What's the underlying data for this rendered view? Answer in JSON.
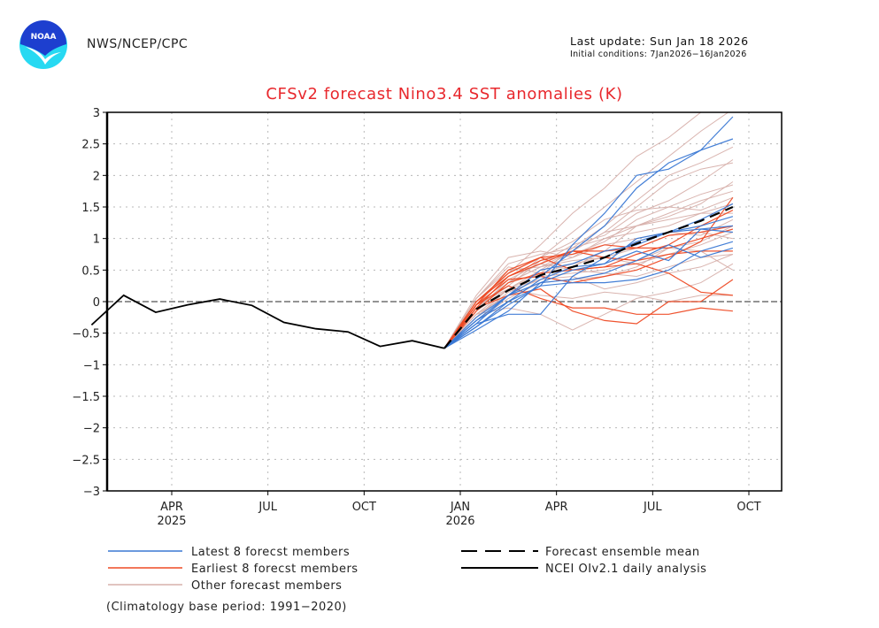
{
  "header": {
    "org": "NWS/NCEP/CPC",
    "logo_text": "NOAA",
    "last_update": "Last update: Sun Jan 18 2026",
    "initial_conditions": "Initial conditions: 7Jan2026−16Jan2026"
  },
  "colors": {
    "title": "#e8282d",
    "latest": "#3a78d4",
    "earliest": "#ee4a24",
    "other": "#d7b0ab",
    "mean": "#000000",
    "observed": "#000000",
    "logo_blue": "#1d3fcf",
    "logo_cyan": "#27d9f2"
  },
  "chart_data": {
    "type": "line",
    "title": "CFSv2 forecast Nino3.4 SST anomalies (K)",
    "xlabel": "",
    "ylabel": "",
    "ylim": [
      -3,
      3
    ],
    "yticks": [
      3,
      2.5,
      2,
      1.5,
      1,
      0.5,
      0,
      -0.5,
      -1,
      -1.5,
      -2,
      -2.5,
      -3
    ],
    "ytick_labels": [
      "3",
      "2.5",
      "2",
      "1.5",
      "1",
      "0.5",
      "0",
      "−0.5",
      "−1",
      "−1.5",
      "−2",
      "−2.5",
      "−3"
    ],
    "xlim_months": [
      -0.5,
      21.2
    ],
    "xticks": [
      {
        "month": 2,
        "label": "APR",
        "year": "2025"
      },
      {
        "month": 5,
        "label": "JUL",
        "year": ""
      },
      {
        "month": 8,
        "label": "OCT",
        "year": ""
      },
      {
        "month": 11,
        "label": "JAN",
        "year": "2026"
      },
      {
        "month": 14,
        "label": "APR",
        "year": ""
      },
      {
        "month": 17,
        "label": "JUL",
        "year": ""
      },
      {
        "month": 20,
        "label": "OCT",
        "year": ""
      }
    ],
    "grid": true,
    "zero_line": true,
    "observed": {
      "name": "NCEI OIv2.1 daily analysis",
      "x": [
        -0.5,
        0.5,
        1.5,
        2.5,
        3.5,
        4.5,
        5.5,
        6.5,
        7.5,
        8.5,
        9.5,
        10.5
      ],
      "y": [
        -0.37,
        0.1,
        -0.17,
        -0.05,
        0.04,
        -0.06,
        -0.33,
        -0.43,
        -0.48,
        -0.71,
        -0.62,
        -0.74
      ]
    },
    "forecast_x": [
      10.5,
      11.5,
      12.5,
      13.5,
      14.5,
      15.5,
      16.5,
      17.5,
      18.5,
      19.5
    ],
    "ensemble_mean": {
      "name": "Forecast ensemble mean",
      "y": [
        -0.74,
        -0.12,
        0.18,
        0.42,
        0.55,
        0.7,
        0.92,
        1.1,
        1.28,
        1.5
      ]
    },
    "series": [
      {
        "group": "latest",
        "name": "Latest 8 forecst members",
        "y": [
          -0.74,
          -0.4,
          -0.05,
          0.25,
          0.9,
          1.4,
          2.0,
          2.1,
          2.4,
          2.93
        ]
      },
      {
        "group": "latest",
        "name": "",
        "y": [
          -0.74,
          -0.3,
          0.1,
          0.4,
          0.8,
          1.2,
          1.8,
          2.2,
          2.4,
          2.58
        ]
      },
      {
        "group": "latest",
        "name": "",
        "y": [
          -0.74,
          -0.35,
          -0.2,
          -0.2,
          0.4,
          0.7,
          0.95,
          1.1,
          1.3,
          1.55
        ]
      },
      {
        "group": "latest",
        "name": "",
        "y": [
          -0.74,
          -0.45,
          -0.15,
          0.3,
          0.5,
          0.6,
          1.0,
          1.1,
          1.15,
          1.2
        ]
      },
      {
        "group": "latest",
        "name": "",
        "y": [
          -0.74,
          -0.3,
          0.0,
          0.35,
          0.55,
          0.6,
          0.8,
          0.65,
          1.15,
          1.1
        ]
      },
      {
        "group": "latest",
        "name": "",
        "y": [
          -0.74,
          -0.4,
          0.0,
          0.25,
          0.3,
          0.3,
          0.35,
          0.5,
          0.8,
          0.95
        ]
      },
      {
        "group": "latest",
        "name": "",
        "y": [
          -0.74,
          -0.35,
          0.1,
          0.3,
          0.35,
          0.45,
          0.65,
          0.9,
          0.7,
          0.85
        ]
      },
      {
        "group": "latest",
        "name": "",
        "y": [
          -0.74,
          -0.25,
          0.1,
          0.5,
          0.6,
          0.8,
          0.9,
          1.1,
          1.2,
          1.35
        ]
      },
      {
        "group": "earliest",
        "name": "Earliest 8 forecst members",
        "y": [
          -0.74,
          -0.05,
          0.5,
          0.7,
          0.75,
          0.9,
          0.85,
          1.05,
          1.1,
          1.2
        ]
      },
      {
        "group": "earliest",
        "name": "",
        "y": [
          -0.74,
          0.0,
          0.4,
          0.65,
          0.8,
          0.8,
          0.85,
          0.85,
          1.0,
          1.15
        ]
      },
      {
        "group": "earliest",
        "name": "",
        "y": [
          -0.74,
          -0.1,
          0.4,
          0.6,
          0.8,
          0.7,
          0.65,
          0.75,
          0.8,
          0.8
        ]
      },
      {
        "group": "earliest",
        "name": "",
        "y": [
          -0.74,
          -0.05,
          0.35,
          0.4,
          0.3,
          0.4,
          0.5,
          0.7,
          0.95,
          1.65
        ]
      },
      {
        "group": "earliest",
        "name": "",
        "y": [
          -0.74,
          -0.15,
          0.3,
          0.45,
          0.5,
          0.55,
          0.6,
          0.45,
          0.15,
          0.1
        ]
      },
      {
        "group": "earliest",
        "name": "",
        "y": [
          -0.74,
          -0.1,
          0.1,
          0.2,
          -0.15,
          -0.3,
          -0.35,
          0.0,
          0.0,
          0.35
        ]
      },
      {
        "group": "earliest",
        "name": "",
        "y": [
          -0.74,
          -0.05,
          0.25,
          0.05,
          -0.1,
          -0.1,
          -0.2,
          -0.2,
          -0.1,
          -0.15
        ]
      },
      {
        "group": "earliest",
        "name": "",
        "y": [
          -0.74,
          0.0,
          0.45,
          0.7,
          0.5,
          0.55,
          0.75,
          0.9,
          1.2,
          1.45
        ]
      },
      {
        "group": "other",
        "name": "Other forecast members",
        "y": [
          -0.74,
          0.1,
          0.7,
          0.8,
          0.7,
          1.0,
          1.2,
          1.4,
          1.6,
          1.75
        ]
      },
      {
        "group": "other",
        "name": "",
        "y": [
          -0.74,
          0.0,
          0.45,
          0.9,
          1.4,
          1.8,
          2.3,
          2.6,
          3.0,
          3.3
        ]
      },
      {
        "group": "other",
        "name": "",
        "y": [
          -0.74,
          -0.1,
          0.3,
          0.7,
          1.1,
          1.5,
          1.9,
          2.3,
          2.7,
          3.05
        ]
      },
      {
        "group": "other",
        "name": "",
        "y": [
          -0.74,
          -0.2,
          0.2,
          0.45,
          0.85,
          1.2,
          1.6,
          2.0,
          2.2,
          2.45
        ]
      },
      {
        "group": "other",
        "name": "",
        "y": [
          -0.74,
          -0.15,
          0.35,
          0.6,
          0.9,
          1.05,
          1.4,
          1.6,
          1.9,
          2.25
        ]
      },
      {
        "group": "other",
        "name": "",
        "y": [
          -0.74,
          0.05,
          0.5,
          0.55,
          0.8,
          1.1,
          1.2,
          1.35,
          1.55,
          1.9
        ]
      },
      {
        "group": "other",
        "name": "",
        "y": [
          -0.74,
          -0.1,
          0.25,
          0.65,
          0.75,
          0.95,
          1.3,
          1.5,
          1.7,
          1.85
        ]
      },
      {
        "group": "other",
        "name": "",
        "y": [
          -0.74,
          -0.25,
          0.15,
          0.35,
          0.55,
          0.8,
          1.2,
          1.3,
          1.4,
          1.4
        ]
      },
      {
        "group": "other",
        "name": "",
        "y": [
          -0.74,
          -0.2,
          -0.1,
          -0.2,
          -0.45,
          -0.2,
          0.05,
          0.15,
          0.3,
          0.6
        ]
      },
      {
        "group": "other",
        "name": "",
        "y": [
          -0.74,
          -0.05,
          0.2,
          0.1,
          0.05,
          0.15,
          0.1,
          0.0,
          0.1,
          0.1
        ]
      },
      {
        "group": "other",
        "name": "",
        "y": [
          -0.74,
          -0.3,
          0.05,
          0.3,
          0.35,
          0.4,
          0.55,
          0.85,
          0.8,
          0.5
        ]
      },
      {
        "group": "other",
        "name": "",
        "y": [
          -0.74,
          0.05,
          0.55,
          0.45,
          0.6,
          0.7,
          0.85,
          1.05,
          1.1,
          1.0
        ]
      },
      {
        "group": "other",
        "name": "",
        "y": [
          -0.74,
          -0.15,
          0.3,
          0.55,
          0.7,
          0.9,
          1.0,
          1.1,
          1.05,
          1.3
        ]
      },
      {
        "group": "other",
        "name": "",
        "y": [
          -0.74,
          -0.05,
          0.45,
          0.7,
          0.95,
          1.3,
          1.45,
          1.5,
          1.45,
          1.65
        ]
      },
      {
        "group": "other",
        "name": "",
        "y": [
          -0.74,
          -0.2,
          0.1,
          0.4,
          0.45,
          0.5,
          0.65,
          0.85,
          0.95,
          1.2
        ]
      },
      {
        "group": "other",
        "name": "",
        "y": [
          -0.74,
          0.0,
          0.4,
          0.6,
          0.5,
          0.45,
          0.4,
          0.55,
          0.7,
          0.75
        ]
      },
      {
        "group": "other",
        "name": "",
        "y": [
          -0.74,
          -0.25,
          0.2,
          0.5,
          0.8,
          1.1,
          1.5,
          1.9,
          2.1,
          2.2
        ]
      },
      {
        "group": "other",
        "name": "",
        "y": [
          -0.74,
          -0.1,
          0.3,
          0.55,
          0.65,
          0.7,
          0.6,
          0.75,
          0.9,
          1.1
        ]
      },
      {
        "group": "other",
        "name": "",
        "y": [
          -0.74,
          0.05,
          0.6,
          0.75,
          0.85,
          1.0,
          1.1,
          1.2,
          1.4,
          1.55
        ]
      },
      {
        "group": "other",
        "name": "",
        "y": [
          -0.74,
          -0.15,
          0.2,
          0.35,
          0.4,
          0.2,
          0.3,
          0.45,
          0.55,
          0.75
        ]
      }
    ],
    "legend": {
      "placement": "bottom",
      "left": [
        {
          "key": "latest",
          "label": "Latest 8 forecst members"
        },
        {
          "key": "earliest",
          "label": "Earliest 8 forecst members"
        },
        {
          "key": "other",
          "label": "Other forecast members"
        }
      ],
      "right": [
        {
          "key": "mean",
          "label": "Forecast ensemble mean"
        },
        {
          "key": "observed",
          "label": "NCEI OIv2.1 daily analysis"
        }
      ],
      "note": "(Climatology base period: 1991−2020)"
    }
  }
}
